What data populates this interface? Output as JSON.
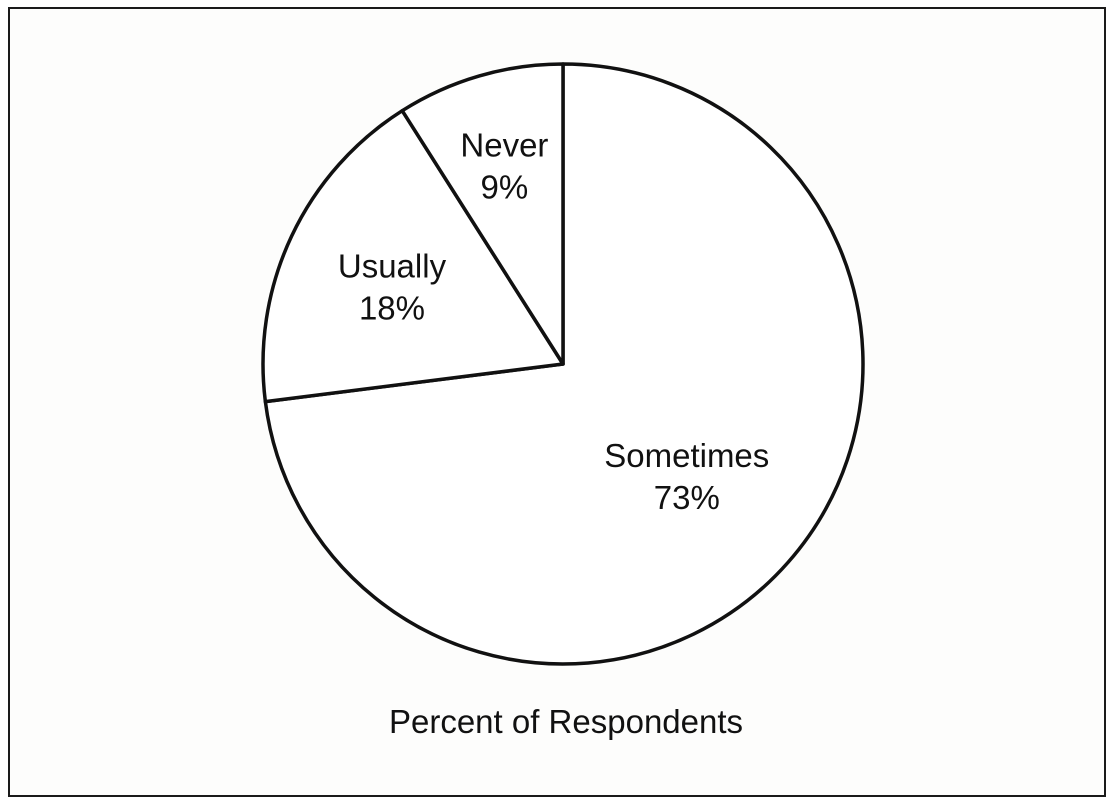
{
  "chart_data": {
    "type": "pie",
    "title": "Percent of Respondents",
    "slices": [
      {
        "label": "Sometimes",
        "value": 73,
        "value_label": "73%"
      },
      {
        "label": "Usually",
        "value": 18,
        "value_label": "18%"
      },
      {
        "label": "Never",
        "value": 9,
        "value_label": "9%"
      }
    ],
    "start_angle_deg": 0,
    "direction": "clockwise",
    "legend": "none"
  }
}
